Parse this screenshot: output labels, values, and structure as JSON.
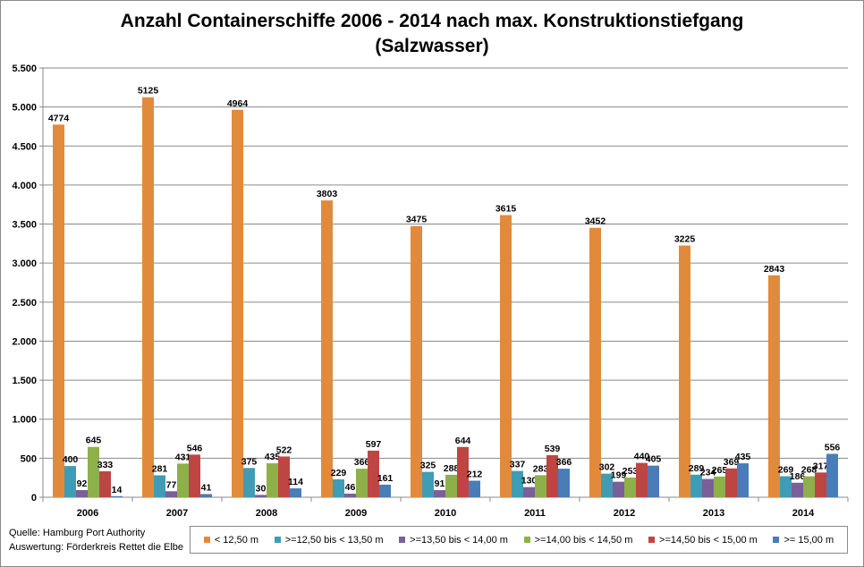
{
  "title_line1": "Anzahl Containerschiffe 2006 - 2014 nach max. Konstruktionstiefgang",
  "title_line2": "(Salzwasser)",
  "source_line1": "Quelle: Hamburg Port Authority",
  "source_line2": "Auswertung: Förderkreis Rettet die Elbe",
  "chart_data": {
    "type": "bar",
    "title": "Anzahl Containerschiffe 2006 - 2014 nach max. Konstruktionstiefgang (Salzwasser)",
    "categories": [
      "2006",
      "2007",
      "2008",
      "2009",
      "2010",
      "2011",
      "2012",
      "2013",
      "2014"
    ],
    "ylim": [
      0,
      5500
    ],
    "yticks": [
      0,
      500,
      1000,
      1500,
      2000,
      2500,
      3000,
      3500,
      4000,
      4500,
      5000,
      5500
    ],
    "ytick_labels": [
      "0",
      "500",
      "1.000",
      "1.500",
      "2.000",
      "2.500",
      "3.000",
      "3.500",
      "4.000",
      "4.500",
      "5.000",
      "5.500"
    ],
    "grid": true,
    "legend_position": "bottom",
    "series": [
      {
        "name": "< 12,50 m",
        "color": "#E28A3C",
        "values": [
          4774,
          5125,
          4964,
          3803,
          3475,
          3615,
          3452,
          3225,
          2843
        ]
      },
      {
        "name": ">=12,50 bis < 13,50 m",
        "color": "#3F9CB5",
        "values": [
          400,
          281,
          375,
          229,
          325,
          337,
          302,
          289,
          269
        ]
      },
      {
        "name": ">=13,50 bis < 14,00 m",
        "color": "#7A5F9A",
        "values": [
          92,
          77,
          30,
          46,
          91,
          130,
          199,
          234,
          186
        ]
      },
      {
        "name": ">=14,00 bis < 14,50 m",
        "color": "#8EB04A",
        "values": [
          645,
          431,
          435,
          366,
          288,
          283,
          253,
          265,
          268
        ]
      },
      {
        "name": ">=14,50 bis < 15,00 m",
        "color": "#BF4543",
        "values": [
          333,
          546,
          522,
          597,
          644,
          539,
          440,
          369,
          317
        ]
      },
      {
        "name": ">= 15,00 m",
        "color": "#4A7CB8",
        "values": [
          14,
          41,
          114,
          161,
          212,
          366,
          405,
          435,
          556
        ]
      }
    ]
  }
}
